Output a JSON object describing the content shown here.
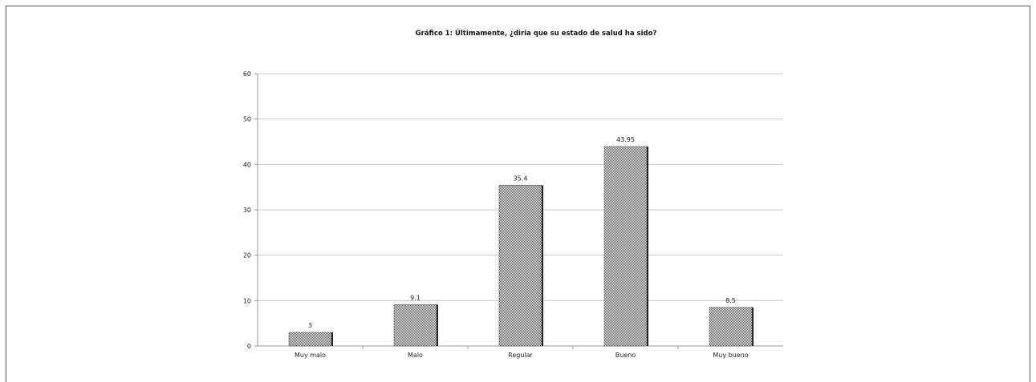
{
  "chart_data": {
    "type": "bar",
    "title": "Gráfico 1: Últimamente, ¿diría que su estado de salud ha sido?",
    "categories": [
      "Muy malo",
      "Malo",
      "Regular",
      "Bueno",
      "Muy bueno"
    ],
    "values": [
      3,
      9.1,
      35.4,
      43.95,
      8.5
    ],
    "data_labels": [
      "3",
      "9.1",
      "35.4",
      "43.95",
      "8.5"
    ],
    "xlabel": "",
    "ylabel": "",
    "ylim": [
      0,
      60
    ],
    "yticks": [
      0,
      10,
      20,
      30,
      40,
      50,
      60
    ],
    "grid": true,
    "legend": "none",
    "bar_fill": "crosshatch-gray"
  }
}
